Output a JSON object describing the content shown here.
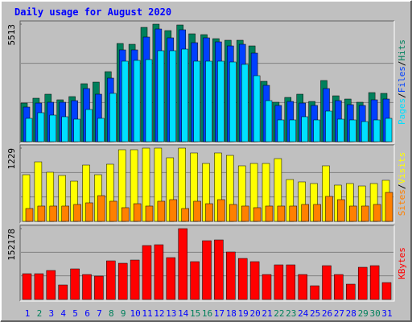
{
  "chart_data": [
    {
      "type": "bar",
      "title": "Daily usage for August 2020",
      "ylim": [
        0,
        5513
      ],
      "yticks": [
        5513
      ],
      "grid": true,
      "legend_separator": "/",
      "series": [
        {
          "name": "Hits",
          "color": "#00805c",
          "values": [
            1812,
            2039,
            2228,
            1964,
            2115,
            2719,
            2794,
            3285,
            4607,
            4569,
            5362,
            5513,
            5211,
            5475,
            5060,
            5022,
            4833,
            4758,
            4758,
            4493,
            2832,
            1850,
            2077,
            2228,
            1888,
            2870,
            2152,
            2001,
            1850,
            2303,
            2266
          ]
        },
        {
          "name": "Files",
          "color": "#0040ff",
          "values": [
            1624,
            1812,
            1850,
            1850,
            1926,
            2492,
            2228,
            2983,
            4305,
            4305,
            4909,
            5286,
            4871,
            5249,
            4644,
            4871,
            4682,
            4493,
            4569,
            4154,
            2643,
            1699,
            1888,
            1812,
            1699,
            2492,
            1926,
            1737,
            1699,
            1964,
            2001
          ]
        },
        {
          "name": "Pages",
          "color": "#00e0ff",
          "values": [
            1095,
            1359,
            1246,
            1171,
            1057,
            1510,
            1095,
            2266,
            3776,
            3814,
            3852,
            4267,
            4267,
            4342,
            3776,
            3776,
            3776,
            3738,
            3625,
            3096,
            1926,
            1020,
            1020,
            1171,
            1020,
            1435,
            1057,
            1020,
            944,
            1020,
            1095
          ]
        }
      ]
    },
    {
      "type": "bar",
      "ylim": [
        0,
        1229
      ],
      "yticks": [
        1229
      ],
      "grid": true,
      "legend_separator": "/",
      "series": [
        {
          "name": "Visits",
          "color": "#ffff00",
          "values": [
            783,
            999,
            824,
            770,
            675,
            945,
            783,
            959,
            1202,
            1202,
            1229,
            1229,
            1067,
            1229,
            1148,
            972,
            1148,
            1107,
            932,
            972,
            972,
            1053,
            702,
            662,
            635,
            932,
            608,
            635,
            594,
            635,
            689
          ]
        },
        {
          "name": "Sites",
          "color": "#ff8000",
          "values": [
            216,
            257,
            257,
            257,
            284,
            311,
            432,
            338,
            230,
            297,
            257,
            338,
            365,
            216,
            338,
            297,
            365,
            284,
            257,
            230,
            257,
            257,
            257,
            284,
            284,
            419,
            365,
            257,
            257,
            284,
            486
          ]
        }
      ]
    },
    {
      "type": "bar",
      "ylim": [
        0,
        152178
      ],
      "yticks": [
        152178
      ],
      "grid": true,
      "categories": [
        "1",
        "2",
        "3",
        "4",
        "5",
        "6",
        "7",
        "8",
        "9",
        "10",
        "11",
        "12",
        "13",
        "14",
        "15",
        "16",
        "17",
        "18",
        "19",
        "20",
        "21",
        "22",
        "23",
        "24",
        "25",
        "26",
        "27",
        "28",
        "29",
        "30",
        "31"
      ],
      "label_color": "#0000ff",
      "weekend_color": "#00805c",
      "weekend_indices": [
        1,
        7,
        8,
        14,
        15,
        21,
        22,
        28,
        29
      ],
      "series": [
        {
          "name": "KBytes",
          "color": "#ff0000",
          "values": [
            55328,
            55328,
            62244,
            31122,
            65702,
            53599,
            50141,
            82992,
            77805,
            84721,
            115843,
            117572,
            89908,
            152178,
            81263,
            126217,
            127946,
            102011,
            88179,
            81263,
            53599,
            74347,
            74347,
            53599,
            29393,
            72618,
            53599,
            32851,
            69160,
            72618,
            36309
          ]
        }
      ]
    }
  ]
}
